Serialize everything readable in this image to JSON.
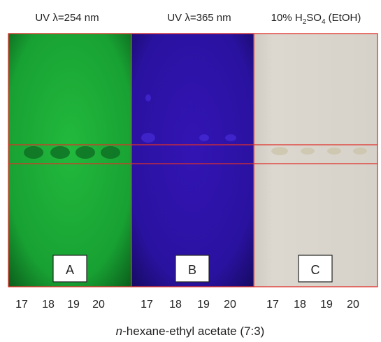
{
  "panels": [
    {
      "title_parts": [
        "UV λ=254 nm"
      ],
      "label": "A",
      "lanes": [
        "17",
        "18",
        "19",
        "20"
      ]
    },
    {
      "title_parts": [
        "UV λ=365 nm"
      ],
      "label": "B",
      "lanes": [
        "17",
        "18",
        "19",
        "20"
      ]
    },
    {
      "title_parts": [
        "10% H",
        "2",
        "SO",
        "4",
        " (EtOH)"
      ],
      "label": "C",
      "lanes": [
        "17",
        "18",
        "19",
        "20"
      ]
    }
  ],
  "caption_parts": [
    "n",
    "-hexane-ethyl acetate (7:3)"
  ]
}
